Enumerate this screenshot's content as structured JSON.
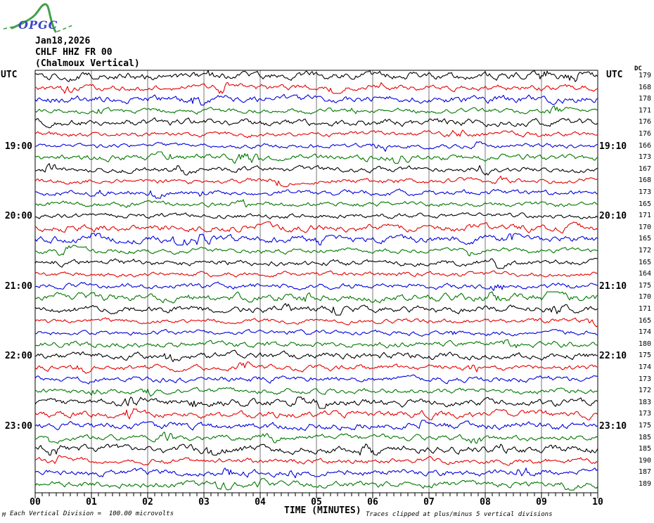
{
  "logo": {
    "text": "OPGC"
  },
  "header": {
    "date": "Jan18,2026",
    "station": "CHLF HHZ FR 00",
    "location": "(Chalmoux Vertical)"
  },
  "axis": {
    "left_header": "UTC",
    "right_header": "UTC",
    "dc_header": "DC",
    "x_title": "TIME (MINUTES)",
    "x_ticks": [
      "00",
      "01",
      "02",
      "03",
      "04",
      "05",
      "06",
      "07",
      "08",
      "09",
      "10"
    ],
    "left_time_labels": [
      {
        "row": 6,
        "label": "19:00"
      },
      {
        "row": 12,
        "label": "20:00"
      },
      {
        "row": 18,
        "label": "21:00"
      },
      {
        "row": 24,
        "label": "22:00"
      },
      {
        "row": 30,
        "label": "23:00"
      }
    ],
    "right_time_labels": [
      {
        "row": 6,
        "label": "19:10"
      },
      {
        "row": 12,
        "label": "20:10"
      },
      {
        "row": 18,
        "label": "21:10"
      },
      {
        "row": 24,
        "label": "22:10"
      },
      {
        "row": 30,
        "label": "23:10"
      }
    ]
  },
  "footer": {
    "scale_note": "Each Vertical Division =  100.00 microvolts",
    "clip_note": "Traces clipped at plus/minus 5 vertical divisions",
    "corner_mark": "M"
  },
  "colors": {
    "black": "#000000",
    "red": "#e60000",
    "blue": "#0000dd",
    "green": "#007700",
    "grid": "#777777",
    "logo_green": "#44a048",
    "logo_blue": "#3a46c4"
  },
  "chart_data": {
    "type": "line",
    "subtype": "helicorder-seismogram",
    "title": "CHLF HHZ FR 00 (Chalmoux Vertical) Jan18,2026",
    "xlabel": "TIME (MINUTES)",
    "x_range": [
      0,
      10
    ],
    "minutes_per_trace": 10,
    "grid": "vertical-minute-lines",
    "trace_color_cycle": [
      "black",
      "red",
      "blue",
      "green"
    ],
    "vertical_division_microvolts": 100.0,
    "clip_divisions": 5,
    "noise_amplitude_divisions": 0.35,
    "traces": [
      {
        "start_utc": "18:00",
        "end_utc": "18:10",
        "color": "black",
        "dc": 179
      },
      {
        "start_utc": "18:10",
        "end_utc": "18:20",
        "color": "red",
        "dc": 168
      },
      {
        "start_utc": "18:20",
        "end_utc": "18:30",
        "color": "blue",
        "dc": 178
      },
      {
        "start_utc": "18:30",
        "end_utc": "18:40",
        "color": "green",
        "dc": 171
      },
      {
        "start_utc": "18:40",
        "end_utc": "18:50",
        "color": "black",
        "dc": 176
      },
      {
        "start_utc": "18:50",
        "end_utc": "19:00",
        "color": "red",
        "dc": 176
      },
      {
        "start_utc": "19:00",
        "end_utc": "19:10",
        "color": "blue",
        "dc": 166
      },
      {
        "start_utc": "19:10",
        "end_utc": "19:20",
        "color": "green",
        "dc": 173
      },
      {
        "start_utc": "19:20",
        "end_utc": "19:30",
        "color": "black",
        "dc": 167
      },
      {
        "start_utc": "19:30",
        "end_utc": "19:40",
        "color": "red",
        "dc": 168
      },
      {
        "start_utc": "19:40",
        "end_utc": "19:50",
        "color": "blue",
        "dc": 173
      },
      {
        "start_utc": "19:50",
        "end_utc": "20:00",
        "color": "green",
        "dc": 165
      },
      {
        "start_utc": "20:00",
        "end_utc": "20:10",
        "color": "black",
        "dc": 171
      },
      {
        "start_utc": "20:10",
        "end_utc": "20:20",
        "color": "red",
        "dc": 170
      },
      {
        "start_utc": "20:20",
        "end_utc": "20:30",
        "color": "blue",
        "dc": 165
      },
      {
        "start_utc": "20:30",
        "end_utc": "20:40",
        "color": "green",
        "dc": 172
      },
      {
        "start_utc": "20:40",
        "end_utc": "20:50",
        "color": "black",
        "dc": 165
      },
      {
        "start_utc": "20:50",
        "end_utc": "21:00",
        "color": "red",
        "dc": 164
      },
      {
        "start_utc": "21:00",
        "end_utc": "21:10",
        "color": "blue",
        "dc": 175
      },
      {
        "start_utc": "21:10",
        "end_utc": "21:20",
        "color": "green",
        "dc": 170
      },
      {
        "start_utc": "21:20",
        "end_utc": "21:30",
        "color": "black",
        "dc": 171
      },
      {
        "start_utc": "21:30",
        "end_utc": "21:40",
        "color": "red",
        "dc": 165
      },
      {
        "start_utc": "21:40",
        "end_utc": "21:50",
        "color": "blue",
        "dc": 174
      },
      {
        "start_utc": "21:50",
        "end_utc": "22:00",
        "color": "green",
        "dc": 180
      },
      {
        "start_utc": "22:00",
        "end_utc": "22:10",
        "color": "black",
        "dc": 175
      },
      {
        "start_utc": "22:10",
        "end_utc": "22:20",
        "color": "red",
        "dc": 174
      },
      {
        "start_utc": "22:20",
        "end_utc": "22:30",
        "color": "blue",
        "dc": 173
      },
      {
        "start_utc": "22:30",
        "end_utc": "22:40",
        "color": "green",
        "dc": 172
      },
      {
        "start_utc": "22:40",
        "end_utc": "22:50",
        "color": "black",
        "dc": 183
      },
      {
        "start_utc": "22:50",
        "end_utc": "23:00",
        "color": "red",
        "dc": 173
      },
      {
        "start_utc": "23:00",
        "end_utc": "23:10",
        "color": "blue",
        "dc": 175
      },
      {
        "start_utc": "23:10",
        "end_utc": "23:20",
        "color": "green",
        "dc": 185
      },
      {
        "start_utc": "23:20",
        "end_utc": "23:30",
        "color": "black",
        "dc": 185
      },
      {
        "start_utc": "23:30",
        "end_utc": "23:40",
        "color": "red",
        "dc": 190
      },
      {
        "start_utc": "23:40",
        "end_utc": "23:50",
        "color": "blue",
        "dc": 187
      },
      {
        "start_utc": "23:50",
        "end_utc": "24:00",
        "color": "green",
        "dc": 189
      }
    ]
  }
}
